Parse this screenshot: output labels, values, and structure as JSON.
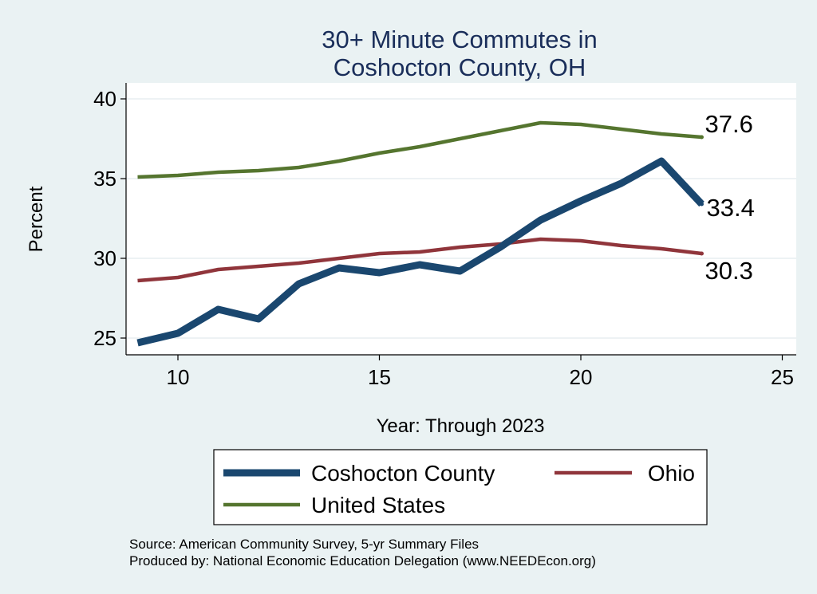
{
  "chart_data": {
    "type": "line",
    "title": [
      "30+ Minute Commutes in",
      "Coshocton County, OH"
    ],
    "xlabel": "Year: Through 2023",
    "ylabel": "Percent",
    "xlim": [
      9,
      25
    ],
    "ylim": [
      24.5,
      40
    ],
    "xticks": [
      10,
      15,
      20,
      25
    ],
    "yticks": [
      25,
      30,
      35,
      40
    ],
    "grid": true,
    "legend_position": "bottom",
    "x": [
      9,
      10,
      11,
      12,
      13,
      14,
      15,
      16,
      17,
      18,
      19,
      20,
      21,
      22,
      23
    ],
    "series": [
      {
        "name": "Coshocton County",
        "color": "#1a476f",
        "values": [
          24.7,
          25.3,
          26.8,
          26.2,
          28.4,
          29.4,
          29.1,
          29.6,
          29.2,
          30.7,
          32.4,
          33.6,
          34.7,
          36.1,
          33.4
        ],
        "end_label": "33.4"
      },
      {
        "name": "Ohio",
        "color": "#90353b",
        "values": [
          28.6,
          28.8,
          29.3,
          29.5,
          29.7,
          30.0,
          30.3,
          30.4,
          30.7,
          30.9,
          31.2,
          31.1,
          30.8,
          30.6,
          30.3
        ],
        "end_label": "30.3"
      },
      {
        "name": "United States",
        "color": "#55752f",
        "values": [
          35.1,
          35.2,
          35.4,
          35.5,
          35.7,
          36.1,
          36.6,
          37.0,
          37.5,
          38.0,
          38.5,
          38.4,
          38.1,
          37.8,
          37.6
        ],
        "end_label": "37.6"
      }
    ],
    "notes": [
      "Source: American Community Survey, 5-yr Summary Files",
      "Produced by: National Economic Education Delegation (www.NEEDEcon.org)"
    ]
  }
}
